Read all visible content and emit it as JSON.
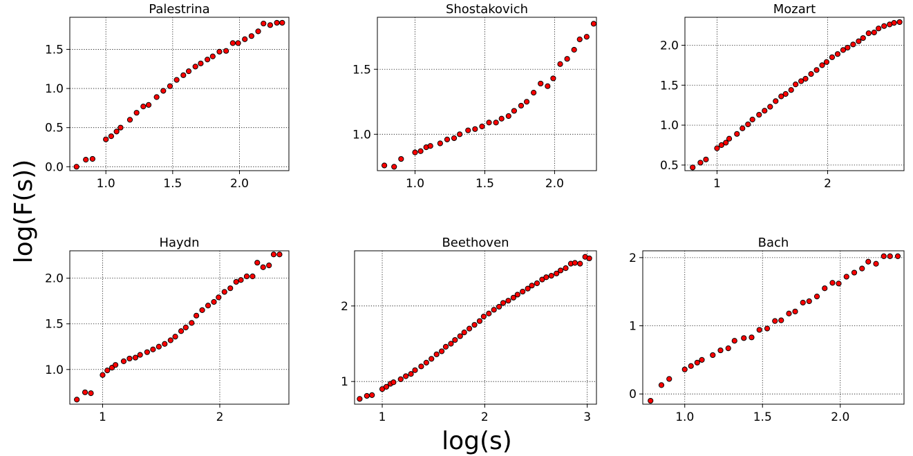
{
  "chart_data": {
    "type": "scatter",
    "xlabel": "log(s)",
    "ylabel": "log(F(s))",
    "marker_fill": "#ff0000",
    "marker_edge": "#000000",
    "grid": true,
    "panels": [
      {
        "title": "Palestrina",
        "xlim": [
          0.73,
          2.37
        ],
        "ylim": [
          -0.05,
          1.91
        ],
        "xticks": [
          1.0,
          1.5,
          2.0
        ],
        "xtick_labels": [
          "1.0",
          "1.5",
          "2.0"
        ],
        "yticks": [
          0.0,
          0.5,
          1.0,
          1.5
        ],
        "ytick_labels": [
          "0.0",
          "0.5",
          "1.0",
          "1.5"
        ],
        "x": [
          0.78,
          0.85,
          0.9,
          1.0,
          1.04,
          1.08,
          1.11,
          1.18,
          1.23,
          1.28,
          1.32,
          1.38,
          1.43,
          1.48,
          1.53,
          1.58,
          1.62,
          1.67,
          1.71,
          1.76,
          1.8,
          1.85,
          1.9,
          1.95,
          1.99,
          2.04,
          2.09,
          2.14,
          2.18,
          2.23,
          2.28,
          2.32
        ],
        "y": [
          0.0,
          0.09,
          0.1,
          0.35,
          0.39,
          0.45,
          0.5,
          0.6,
          0.69,
          0.77,
          0.79,
          0.89,
          0.97,
          1.03,
          1.11,
          1.17,
          1.22,
          1.28,
          1.32,
          1.37,
          1.41,
          1.47,
          1.48,
          1.58,
          1.58,
          1.63,
          1.67,
          1.73,
          1.83,
          1.81,
          1.84,
          1.84
        ]
      },
      {
        "title": "Shostakovich",
        "xlim": [
          0.73,
          2.3
        ],
        "ylim": [
          0.72,
          1.9
        ],
        "xticks": [
          1.0,
          1.5,
          2.0
        ],
        "xtick_labels": [
          "1.0",
          "1.5",
          "2.0"
        ],
        "yticks": [
          1.0,
          1.5
        ],
        "ytick_labels": [
          "1.0",
          "1.5"
        ],
        "x": [
          0.78,
          0.85,
          0.9,
          1.0,
          1.04,
          1.08,
          1.11,
          1.18,
          1.23,
          1.28,
          1.32,
          1.38,
          1.43,
          1.48,
          1.53,
          1.58,
          1.62,
          1.67,
          1.71,
          1.76,
          1.8,
          1.85,
          1.9,
          1.95,
          1.99,
          2.04,
          2.09,
          2.14,
          2.18,
          2.23,
          2.28
        ],
        "y": [
          0.76,
          0.75,
          0.81,
          0.86,
          0.87,
          0.9,
          0.91,
          0.93,
          0.96,
          0.97,
          1.0,
          1.03,
          1.04,
          1.06,
          1.09,
          1.09,
          1.12,
          1.14,
          1.18,
          1.22,
          1.25,
          1.32,
          1.39,
          1.37,
          1.43,
          1.54,
          1.58,
          1.65,
          1.73,
          1.75,
          1.85
        ]
      },
      {
        "title": "Mozart",
        "xlim": [
          0.71,
          2.69
        ],
        "ylim": [
          0.43,
          2.35
        ],
        "xticks": [
          1,
          2
        ],
        "xtick_labels": [
          "1",
          "2"
        ],
        "yticks": [
          0.5,
          1.0,
          1.5,
          2.0
        ],
        "ytick_labels": [
          "0.5",
          "1.0",
          "1.5",
          "2.0"
        ],
        "x": [
          0.78,
          0.85,
          0.9,
          1.0,
          1.04,
          1.08,
          1.11,
          1.18,
          1.23,
          1.28,
          1.32,
          1.38,
          1.43,
          1.48,
          1.53,
          1.58,
          1.62,
          1.67,
          1.71,
          1.76,
          1.8,
          1.85,
          1.9,
          1.95,
          1.99,
          2.04,
          2.09,
          2.14,
          2.18,
          2.23,
          2.28,
          2.32,
          2.37,
          2.42,
          2.46,
          2.51,
          2.56,
          2.6,
          2.65
        ],
        "y": [
          0.47,
          0.53,
          0.57,
          0.71,
          0.75,
          0.78,
          0.83,
          0.89,
          0.96,
          1.01,
          1.07,
          1.13,
          1.18,
          1.23,
          1.3,
          1.36,
          1.39,
          1.44,
          1.51,
          1.55,
          1.58,
          1.64,
          1.69,
          1.75,
          1.79,
          1.85,
          1.89,
          1.94,
          1.97,
          2.01,
          2.05,
          2.09,
          2.15,
          2.16,
          2.21,
          2.24,
          2.26,
          2.28,
          2.29
        ]
      },
      {
        "title": "Haydn",
        "xlim": [
          0.72,
          2.59
        ],
        "ylim": [
          0.62,
          2.3
        ],
        "xticks": [
          1,
          2
        ],
        "xtick_labels": [
          "1",
          "2"
        ],
        "yticks": [
          1.0,
          1.5,
          2.0
        ],
        "ytick_labels": [
          "1.0",
          "1.5",
          "2.0"
        ],
        "x": [
          0.78,
          0.85,
          0.9,
          1.0,
          1.04,
          1.08,
          1.11,
          1.18,
          1.23,
          1.28,
          1.32,
          1.38,
          1.43,
          1.48,
          1.53,
          1.58,
          1.62,
          1.67,
          1.71,
          1.76,
          1.8,
          1.85,
          1.9,
          1.95,
          1.99,
          2.04,
          2.09,
          2.14,
          2.18,
          2.23,
          2.28,
          2.32,
          2.37,
          2.42,
          2.46,
          2.51
        ],
        "y": [
          0.67,
          0.75,
          0.74,
          0.94,
          0.99,
          1.02,
          1.05,
          1.09,
          1.12,
          1.13,
          1.16,
          1.19,
          1.22,
          1.25,
          1.28,
          1.32,
          1.36,
          1.42,
          1.46,
          1.51,
          1.59,
          1.65,
          1.7,
          1.74,
          1.79,
          1.85,
          1.89,
          1.96,
          1.98,
          2.02,
          2.02,
          2.17,
          2.12,
          2.14,
          2.26,
          2.26
        ]
      },
      {
        "title": "Beethoven",
        "xlim": [
          0.73,
          3.09
        ],
        "ylim": [
          0.7,
          2.73
        ],
        "xticks": [
          1,
          2,
          3
        ],
        "xtick_labels": [
          "1",
          "2",
          "3"
        ],
        "yticks": [
          1,
          2
        ],
        "ytick_labels": [
          "1",
          "2"
        ],
        "x": [
          0.78,
          0.85,
          0.9,
          1.0,
          1.04,
          1.08,
          1.11,
          1.18,
          1.23,
          1.28,
          1.32,
          1.38,
          1.43,
          1.48,
          1.53,
          1.58,
          1.62,
          1.67,
          1.71,
          1.76,
          1.8,
          1.85,
          1.9,
          1.95,
          1.99,
          2.04,
          2.09,
          2.14,
          2.18,
          2.23,
          2.28,
          2.32,
          2.37,
          2.42,
          2.46,
          2.51,
          2.56,
          2.6,
          2.65,
          2.7,
          2.74,
          2.79,
          2.84,
          2.88,
          2.93,
          2.98,
          3.02
        ],
        "y": [
          0.77,
          0.81,
          0.82,
          0.9,
          0.93,
          0.97,
          0.99,
          1.03,
          1.07,
          1.1,
          1.15,
          1.2,
          1.25,
          1.3,
          1.36,
          1.4,
          1.46,
          1.5,
          1.55,
          1.6,
          1.65,
          1.7,
          1.75,
          1.8,
          1.86,
          1.9,
          1.95,
          1.99,
          2.04,
          2.07,
          2.11,
          2.15,
          2.19,
          2.23,
          2.27,
          2.3,
          2.35,
          2.38,
          2.4,
          2.43,
          2.47,
          2.5,
          2.56,
          2.57,
          2.56,
          2.65,
          2.63
        ]
      },
      {
        "title": "Bach",
        "xlim": [
          0.73,
          2.41
        ],
        "ylim": [
          -0.15,
          2.1
        ],
        "xticks": [
          1.0,
          1.5,
          2.0
        ],
        "xtick_labels": [
          "1.0",
          "1.5",
          "2.0"
        ],
        "yticks": [
          0,
          1,
          2
        ],
        "ytick_labels": [
          "0",
          "1",
          "2"
        ],
        "x": [
          0.78,
          0.85,
          0.9,
          1.0,
          1.04,
          1.08,
          1.11,
          1.18,
          1.23,
          1.28,
          1.32,
          1.38,
          1.43,
          1.48,
          1.53,
          1.58,
          1.62,
          1.67,
          1.71,
          1.76,
          1.8,
          1.85,
          1.9,
          1.95,
          1.99,
          2.04,
          2.09,
          2.14,
          2.18,
          2.23,
          2.28,
          2.32,
          2.37
        ],
        "y": [
          -0.1,
          0.13,
          0.22,
          0.36,
          0.41,
          0.46,
          0.5,
          0.57,
          0.64,
          0.67,
          0.78,
          0.82,
          0.83,
          0.94,
          0.96,
          1.07,
          1.08,
          1.18,
          1.21,
          1.34,
          1.36,
          1.43,
          1.55,
          1.63,
          1.62,
          1.72,
          1.78,
          1.84,
          1.94,
          1.91,
          2.02,
          2.02,
          2.02
        ]
      }
    ]
  }
}
